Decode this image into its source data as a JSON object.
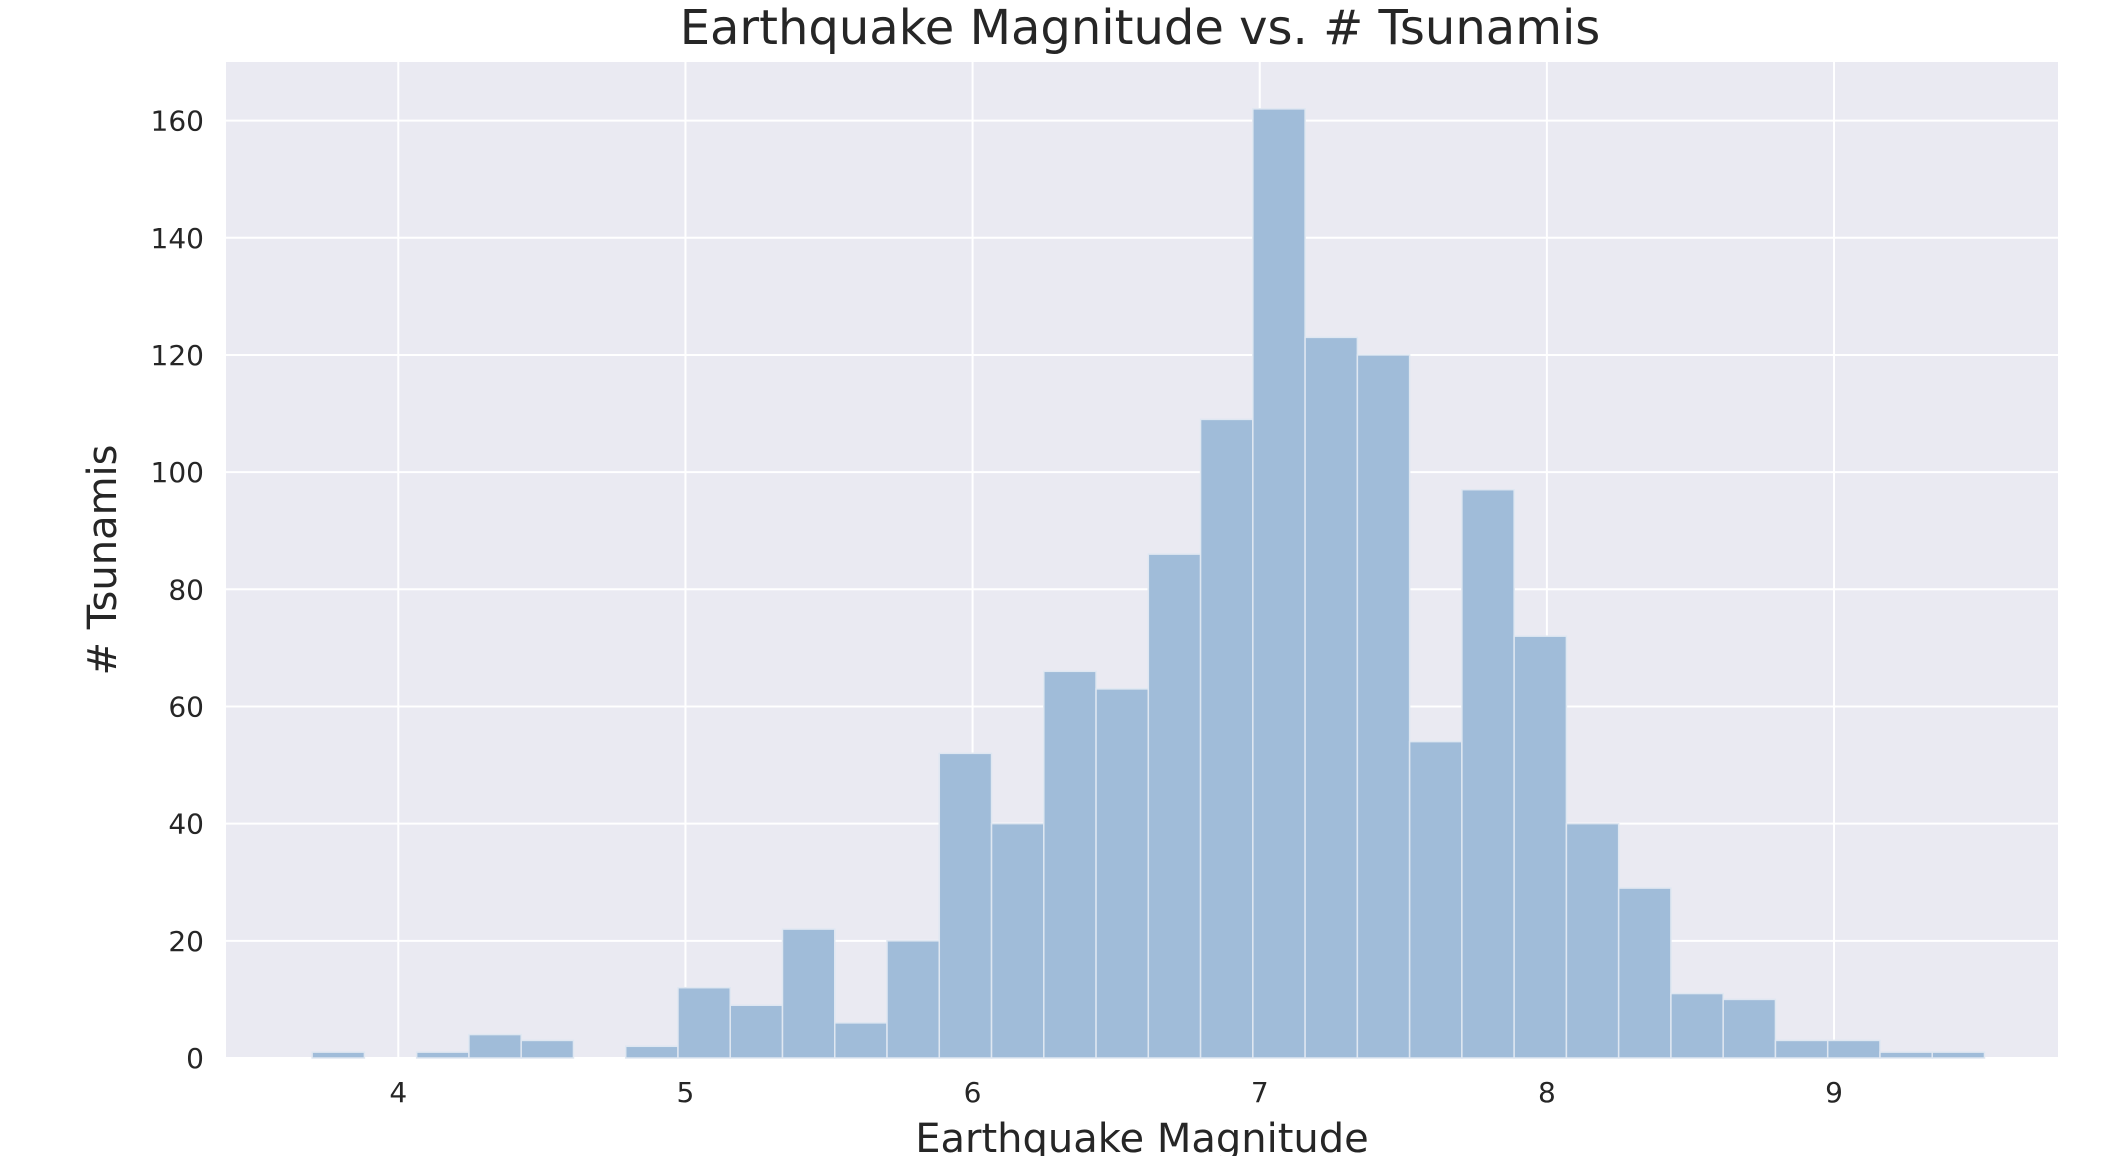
{
  "chart_data": {
    "type": "bar",
    "title": "Earthquake Magnitude vs. # Tsunamis",
    "xlabel": "Earthquake Magnitude",
    "ylabel": "# Tsunamis",
    "xlim": [
      3.4,
      9.78
    ],
    "ylim": [
      0,
      170
    ],
    "grid": true,
    "background_color": "#eaeaf2",
    "bar_color": "#a0bcd9",
    "bar_edge_color": "#dfe7f1",
    "x_ticks": [
      4,
      5,
      6,
      7,
      8,
      9
    ],
    "y_ticks": [
      0,
      20,
      40,
      60,
      80,
      100,
      120,
      140,
      160
    ],
    "bin_start": 3.7,
    "bin_width": 0.182,
    "values": [
      1,
      0,
      1,
      4,
      3,
      0,
      2,
      12,
      9,
      22,
      6,
      20,
      52,
      40,
      66,
      63,
      86,
      109,
      162,
      123,
      120,
      54,
      97,
      72,
      40,
      29,
      11,
      10,
      3,
      3,
      1,
      1
    ]
  }
}
